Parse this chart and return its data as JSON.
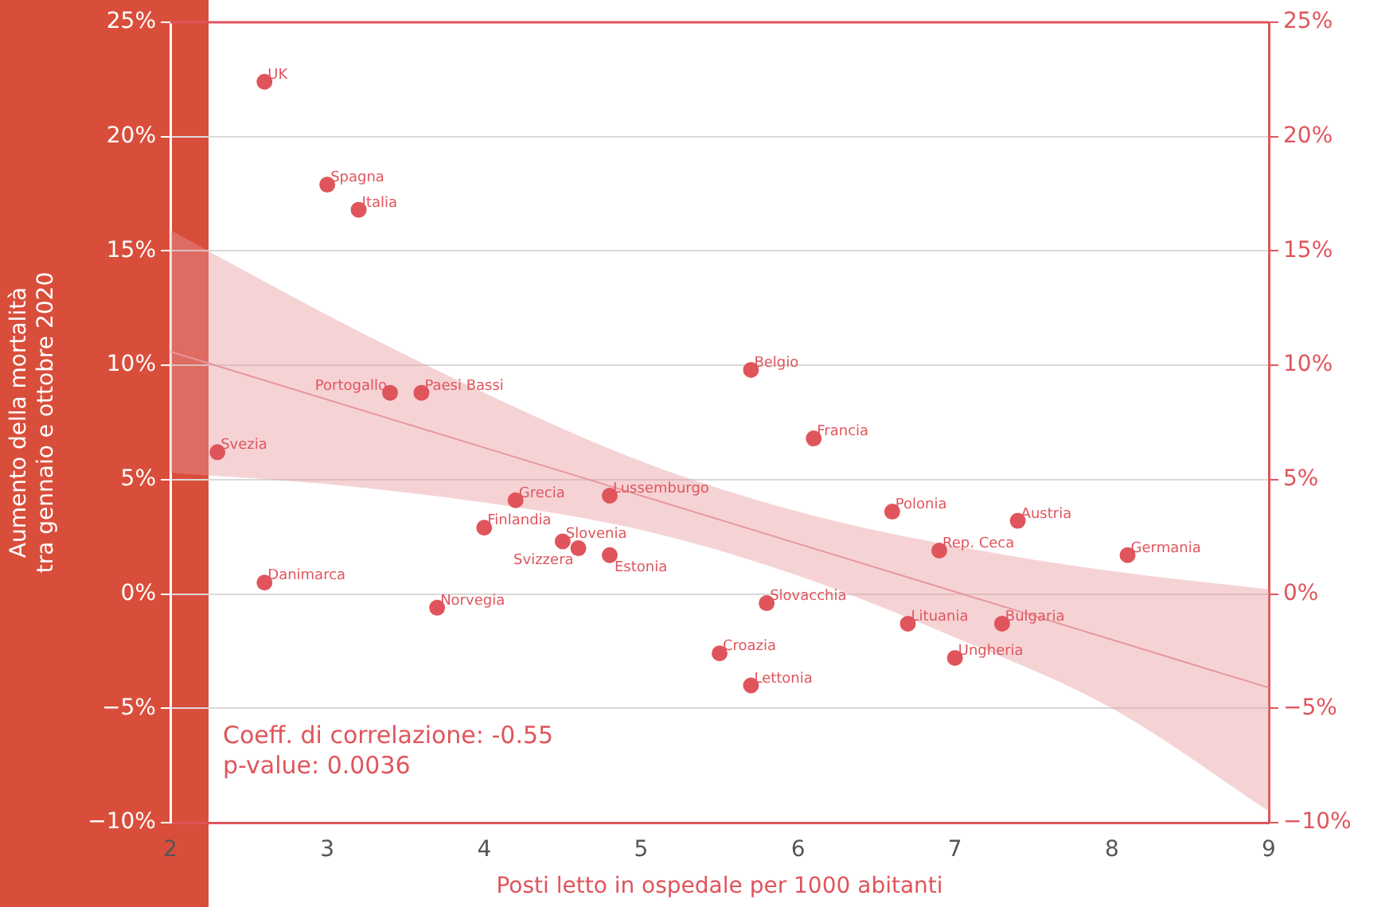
{
  "chart_data": {
    "type": "scatter",
    "xlabel": "Posti letto in ospedale per 1000 abitanti",
    "ylabel": "Aumento della mortalità\ntra gennaio e ottobre 2020",
    "xlim": [
      2,
      9
    ],
    "xticks": [
      2,
      3,
      4,
      5,
      6,
      7,
      8,
      9
    ],
    "ylim": [
      -10,
      25
    ],
    "yticks": [
      {
        "value": -10,
        "label": "−10%"
      },
      {
        "value": -5,
        "label": "−5%"
      },
      {
        "value": 0,
        "label": "0%"
      },
      {
        "value": 5,
        "label": "5%"
      },
      {
        "value": 10,
        "label": "10%"
      },
      {
        "value": 15,
        "label": "15%"
      },
      {
        "value": 20,
        "label": "20%"
      },
      {
        "value": 25,
        "label": "25%"
      }
    ],
    "y2lim": [
      -10,
      25
    ],
    "y2ticks": [
      {
        "value": -10,
        "label": "−10%"
      },
      {
        "value": -5,
        "label": "−5%"
      },
      {
        "value": 0,
        "label": "0%"
      },
      {
        "value": 5,
        "label": "5%"
      },
      {
        "value": 10,
        "label": "10%"
      },
      {
        "value": 15,
        "label": "15%"
      },
      {
        "value": 20,
        "label": "20%"
      },
      {
        "value": 25,
        "label": "25%"
      }
    ],
    "grid": "y",
    "marker": "circle",
    "series": [
      {
        "type": "line",
        "marker": "none",
        "color": "#e8979b",
        "x": [
          2,
          3,
          4,
          5,
          6,
          7,
          8,
          9
        ],
        "values": [
          10.6,
          8.5,
          6.4,
          4.3,
          2.2,
          0.1,
          -2.0,
          -4.1
        ],
        "lower": [
          5.3,
          4.8,
          4.0,
          2.8,
          0.8,
          -1.9,
          -5.0,
          -9.5
        ],
        "upper": [
          15.9,
          12.2,
          8.8,
          5.8,
          3.6,
          2.1,
          1.0,
          0.2
        ]
      },
      {
        "color": "#e0555c",
        "x": [
          2.6,
          3.0,
          3.2,
          3.4,
          3.6,
          2.3,
          4.2,
          4.8,
          4.0,
          4.5,
          4.6,
          4.8,
          2.6,
          3.7,
          5.7,
          6.1,
          6.6,
          7.4,
          6.9,
          8.1,
          5.8,
          6.7,
          7.3,
          7.0,
          5.5,
          5.7
        ],
        "values": [
          22.4,
          17.9,
          16.8,
          8.8,
          8.8,
          6.2,
          4.1,
          4.3,
          2.9,
          2.3,
          2.0,
          1.7,
          0.5,
          -0.6,
          9.8,
          6.8,
          3.6,
          3.2,
          1.9,
          1.7,
          -0.4,
          -1.3,
          -1.3,
          -2.8,
          -2.6,
          -4.0
        ]
      }
    ],
    "annotations": [
      {
        "text": "UK",
        "x": 2.6,
        "y": 22.4
      },
      {
        "text": "Spagna",
        "x": 3.0,
        "y": 17.9
      },
      {
        "text": "Italia",
        "x": 3.2,
        "y": 16.8
      },
      {
        "text": "Portogallo",
        "x": 3.4,
        "y": 8.8
      },
      {
        "text": "Paesi Bassi",
        "x": 3.6,
        "y": 8.8
      },
      {
        "text": "Svezia",
        "x": 2.3,
        "y": 6.2
      },
      {
        "text": "Grecia",
        "x": 4.2,
        "y": 4.1
      },
      {
        "text": "Lussemburgo",
        "x": 4.8,
        "y": 4.3
      },
      {
        "text": "Finlandia",
        "x": 4.0,
        "y": 2.9
      },
      {
        "text": "Slovenia",
        "x": 4.5,
        "y": 2.3
      },
      {
        "text": "Svizzera",
        "x": 4.6,
        "y": 2.0
      },
      {
        "text": "Estonia",
        "x": 4.8,
        "y": 1.7
      },
      {
        "text": "Danimarca",
        "x": 2.6,
        "y": 0.5
      },
      {
        "text": "Norvegia",
        "x": 3.7,
        "y": -0.6
      },
      {
        "text": "Belgio",
        "x": 5.7,
        "y": 9.8
      },
      {
        "text": "Francia",
        "x": 6.1,
        "y": 6.8
      },
      {
        "text": "Polonia",
        "x": 6.6,
        "y": 3.6
      },
      {
        "text": "Austria",
        "x": 7.4,
        "y": 3.2
      },
      {
        "text": "Rep. Ceca",
        "x": 6.9,
        "y": 1.9
      },
      {
        "text": "Germania",
        "x": 8.1,
        "y": 1.7
      },
      {
        "text": "Slovacchia",
        "x": 5.8,
        "y": -0.4
      },
      {
        "text": "Lituania",
        "x": 6.7,
        "y": -1.3
      },
      {
        "text": "Bulgaria",
        "x": 7.3,
        "y": -1.3
      },
      {
        "text": "Ungheria",
        "x": 7.0,
        "y": -2.8
      },
      {
        "text": "Croazia",
        "x": 5.5,
        "y": -2.6
      },
      {
        "text": "Lettonia",
        "x": 5.7,
        "y": -4.0
      },
      "Coeff. di correlazione: -0.55",
      "p-value: 0.0036"
    ]
  }
}
